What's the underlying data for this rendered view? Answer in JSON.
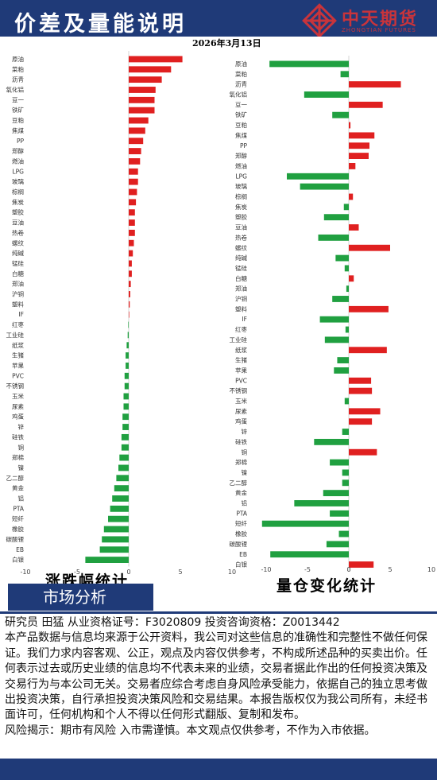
{
  "header": {
    "title": "价差及量能说明",
    "date": "2026年3月13日",
    "logo_text": "中天期货",
    "logo_sub": "ZHONGTIAN FUTURES"
  },
  "colors": {
    "up": "#e02020",
    "down": "#20a040",
    "brand": "#1f3a78",
    "logo": "#c8343b"
  },
  "chart_data": [
    {
      "type": "bar",
      "orientation": "horizontal",
      "caption": "涨跌幅统计",
      "xlim": [
        -10,
        10
      ],
      "xticks": [
        -10,
        -5,
        0,
        5,
        10
      ],
      "categories": [
        "原油",
        "菜粕",
        "沥青",
        "氧化铝",
        "豆一",
        "铁矿",
        "豆粕",
        "焦煤",
        "PP",
        "郑醇",
        "燃油",
        "LPG",
        "玻璃",
        "棕榈",
        "焦炭",
        "塑胶",
        "豆油",
        "热卷",
        "螺纹",
        "纯碱",
        "锰硅",
        "白糖",
        "郑油",
        "沪铜",
        "塑料",
        "IF",
        "红枣",
        "工业硅",
        "纸浆",
        "生猪",
        "苹果",
        "PVC",
        "不锈钢",
        "玉米",
        "尿素",
        "鸡蛋",
        "锌",
        "硅铁",
        "铜",
        "郑棉",
        "镍",
        "乙二醇",
        "黄金",
        "铝",
        "PTA",
        "短纤",
        "橡胶",
        "碳酸锂",
        "EB",
        "白银"
      ],
      "values": [
        5.2,
        4.1,
        3.2,
        2.6,
        2.5,
        2.5,
        1.9,
        1.6,
        1.4,
        1.2,
        1.1,
        0.9,
        0.9,
        0.8,
        0.7,
        0.6,
        0.6,
        0.6,
        0.5,
        0.4,
        0.3,
        0.3,
        0.2,
        0.15,
        0.1,
        0.05,
        -0.05,
        -0.1,
        -0.2,
        -0.3,
        -0.3,
        -0.4,
        -0.4,
        -0.5,
        -0.5,
        -0.6,
        -0.6,
        -0.7,
        -0.7,
        -0.9,
        -1.0,
        -1.2,
        -1.4,
        -1.6,
        -1.8,
        -2.0,
        -2.4,
        -2.6,
        -2.8,
        -4.2
      ]
    },
    {
      "type": "bar",
      "orientation": "horizontal",
      "caption": "量仓变化统计",
      "xlim": [
        -10,
        10
      ],
      "xticks": [
        -10,
        -5,
        0,
        5,
        10
      ],
      "categories": [
        "原油",
        "菜粕",
        "沥青",
        "氧化铝",
        "豆一",
        "铁矿",
        "豆粕",
        "焦煤",
        "PP",
        "郑醇",
        "燃油",
        "LPG",
        "玻璃",
        "棕榈",
        "焦炭",
        "塑胶",
        "豆油",
        "热卷",
        "螺纹",
        "纯碱",
        "锰硅",
        "白糖",
        "郑油",
        "沪铜",
        "塑料",
        "IF",
        "红枣",
        "工业硅",
        "纸浆",
        "生猪",
        "苹果",
        "PVC",
        "不锈钢",
        "玉米",
        "尿素",
        "鸡蛋",
        "锌",
        "硅铁",
        "铜",
        "郑棉",
        "镍",
        "乙二醇",
        "黄金",
        "铝",
        "PTA",
        "短纤",
        "橡胶",
        "碳酸锂",
        "EB",
        "白银"
      ],
      "values": [
        -9.6,
        -1.0,
        6.3,
        -5.4,
        4.1,
        -2.0,
        0.2,
        3.1,
        2.5,
        2.4,
        0.8,
        -7.5,
        -5.9,
        0.5,
        -0.6,
        -3.0,
        1.2,
        -3.7,
        5.0,
        -1.6,
        -0.5,
        0.6,
        -0.3,
        -2.0,
        4.8,
        -3.5,
        -0.4,
        -2.9,
        4.6,
        -1.4,
        -1.8,
        2.7,
        2.8,
        -0.5,
        3.8,
        2.8,
        -0.8,
        -4.2,
        3.4,
        -2.3,
        -0.8,
        -0.8,
        -3.1,
        -6.6,
        -2.3,
        -10.5,
        -1.2,
        -2.7,
        -9.5,
        3.0
      ]
    }
  ],
  "section": {
    "title": "市场分析"
  },
  "body": {
    "researcher_line": "研究员 田猛   从业资格证号：F3020809  投资咨询资格：Z0013442",
    "disclaimer": "本产品数据与信息均来源于公开资料，我公司对这些信息的准确性和完整性不做任何保证。我们力求内容客观、公正，观点及内容仅供参考，不构成所述品种的买卖出价。任何表示过去或历史业绩的信息均不代表未来的业绩，交易者据此作出的任何投资决策及交易行为与本公司无关。交易者应综合考虑自身风险承受能力，依据自己的独立思考做出投资决策，自行承担投资决策风险和交易结果。本报告版权仅为我公司所有，未经书面许可，任何机构和个人不得以任何形式翻版、复制和发布。",
    "risk": "风险揭示：期市有风险 入市需谨慎。本文观点仅供参考，不作为入市依据。"
  }
}
